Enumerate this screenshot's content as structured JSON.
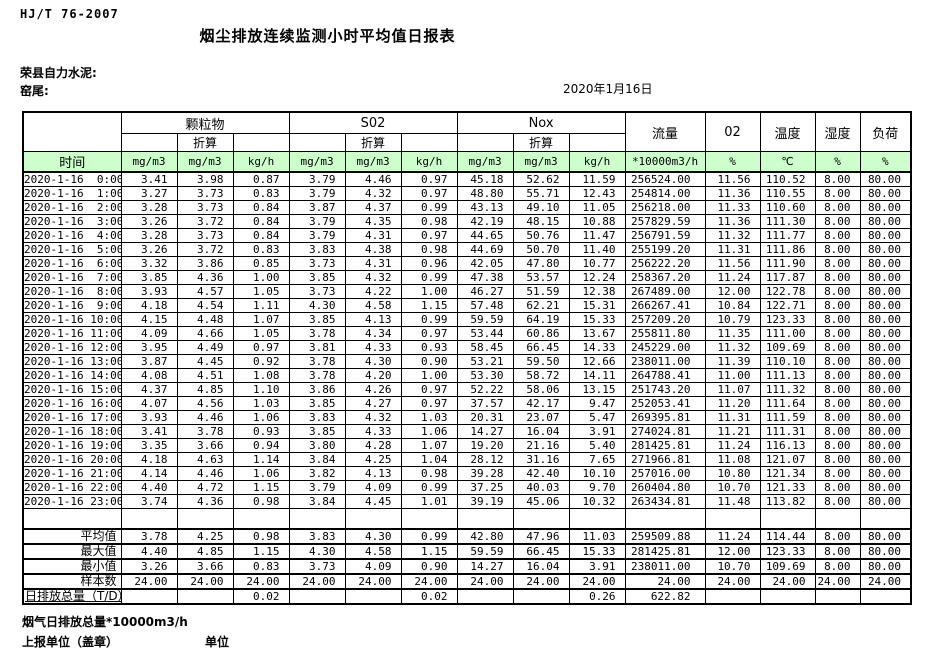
{
  "page": {
    "standard_code": "HJ/T  76-2007",
    "title": "烟尘排放连续监测小时平均值日报表",
    "company": "荣县自力水泥:",
    "station": "窑尾:",
    "date": "2020年1月16日",
    "footer_note": "烟气日排放总量*10000m3/h",
    "footer_report_unit": "上报单位（盖章）",
    "footer_unit_label": "单位"
  },
  "colors": {
    "header_bg": "#ccffcc",
    "border": "#000000",
    "text": "#000000"
  },
  "table": {
    "time_label": "时间",
    "converted_label": "折算",
    "groups": {
      "pm": "颗粒物",
      "so2": "S02",
      "nox": "Nox",
      "flow": "流量",
      "o2": "02",
      "temperature": "温度",
      "humidity": "湿度",
      "load": "负荷"
    },
    "units": [
      "mg/m3",
      "mg/m3",
      "kg/h",
      "mg/m3",
      "mg/m3",
      "kg/h",
      "mg/m3",
      "mg/m3",
      "kg/h",
      "*10000m3/h",
      "%",
      "℃",
      "%",
      "%"
    ],
    "rows": [
      {
        "time": "2020-1-16  0:00",
        "values": [
          "3.41",
          "3.98",
          "0.87",
          "3.79",
          "4.46",
          "0.97",
          "45.18",
          "52.62",
          "11.59",
          "256524.00",
          "11.56",
          "110.52",
          "8.00",
          "80.00"
        ]
      },
      {
        "time": "2020-1-16  1:00",
        "values": [
          "3.27",
          "3.73",
          "0.83",
          "3.79",
          "4.32",
          "0.97",
          "48.80",
          "55.71",
          "12.43",
          "254814.00",
          "11.36",
          "110.55",
          "8.00",
          "80.00"
        ]
      },
      {
        "time": "2020-1-16  2:00",
        "values": [
          "3.28",
          "3.73",
          "0.84",
          "3.87",
          "4.37",
          "0.99",
          "43.13",
          "49.10",
          "11.05",
          "256218.00",
          "11.33",
          "110.60",
          "8.00",
          "80.00"
        ]
      },
      {
        "time": "2020-1-16  3:00",
        "values": [
          "3.26",
          "3.72",
          "0.84",
          "3.79",
          "4.35",
          "0.98",
          "42.19",
          "48.15",
          "10.88",
          "257829.59",
          "11.36",
          "111.30",
          "8.00",
          "80.00"
        ]
      },
      {
        "time": "2020-1-16  4:00",
        "values": [
          "3.28",
          "3.73",
          "0.84",
          "3.79",
          "4.31",
          "0.97",
          "44.65",
          "50.76",
          "11.47",
          "256791.59",
          "11.32",
          "111.77",
          "8.00",
          "80.00"
        ]
      },
      {
        "time": "2020-1-16  5:00",
        "values": [
          "3.26",
          "3.72",
          "0.83",
          "3.83",
          "4.38",
          "0.98",
          "44.69",
          "50.70",
          "11.40",
          "255199.20",
          "11.31",
          "111.86",
          "8.00",
          "80.00"
        ]
      },
      {
        "time": "2020-1-16  6:00",
        "values": [
          "3.32",
          "3.86",
          "0.85",
          "3.73",
          "4.31",
          "0.96",
          "42.05",
          "47.80",
          "10.77",
          "256222.20",
          "11.56",
          "111.90",
          "8.00",
          "80.00"
        ]
      },
      {
        "time": "2020-1-16  7:00",
        "values": [
          "3.85",
          "4.36",
          "1.00",
          "3.85",
          "4.32",
          "0.99",
          "47.38",
          "53.57",
          "12.24",
          "258367.20",
          "11.24",
          "117.87",
          "8.00",
          "80.00"
        ]
      },
      {
        "time": "2020-1-16  8:00",
        "values": [
          "3.93",
          "4.57",
          "1.05",
          "3.73",
          "4.22",
          "1.00",
          "46.27",
          "51.59",
          "12.38",
          "267489.00",
          "12.00",
          "122.78",
          "8.00",
          "80.00"
        ]
      },
      {
        "time": "2020-1-16  9:00",
        "values": [
          "4.18",
          "4.54",
          "1.11",
          "4.30",
          "4.58",
          "1.15",
          "57.48",
          "62.21",
          "15.31",
          "266267.41",
          "10.84",
          "122.71",
          "8.00",
          "80.00"
        ]
      },
      {
        "time": "2020-1-16 10:00",
        "values": [
          "4.15",
          "4.48",
          "1.07",
          "3.85",
          "4.13",
          "0.99",
          "59.59",
          "64.19",
          "15.33",
          "257209.20",
          "10.79",
          "123.33",
          "8.00",
          "80.00"
        ]
      },
      {
        "time": "2020-1-16 11:00",
        "values": [
          "4.09",
          "4.66",
          "1.05",
          "3.78",
          "4.34",
          "0.97",
          "53.44",
          "60.86",
          "13.67",
          "255811.80",
          "11.35",
          "111.00",
          "8.00",
          "80.00"
        ]
      },
      {
        "time": "2020-1-16 12:00",
        "values": [
          "3.95",
          "4.49",
          "0.97",
          "3.81",
          "4.33",
          "0.93",
          "58.45",
          "66.45",
          "14.33",
          "245229.00",
          "11.32",
          "109.69",
          "8.00",
          "80.00"
        ]
      },
      {
        "time": "2020-1-16 13:00",
        "values": [
          "3.87",
          "4.45",
          "0.92",
          "3.78",
          "4.30",
          "0.90",
          "53.21",
          "59.50",
          "12.66",
          "238011.00",
          "11.39",
          "110.10",
          "8.00",
          "80.00"
        ]
      },
      {
        "time": "2020-1-16 14:00",
        "values": [
          "4.08",
          "4.51",
          "1.08",
          "3.78",
          "4.20",
          "1.00",
          "53.30",
          "58.72",
          "14.11",
          "264788.41",
          "11.00",
          "111.13",
          "8.00",
          "80.00"
        ]
      },
      {
        "time": "2020-1-16 15:00",
        "values": [
          "4.37",
          "4.85",
          "1.10",
          "3.86",
          "4.26",
          "0.97",
          "52.22",
          "58.06",
          "13.15",
          "251743.20",
          "11.07",
          "111.32",
          "8.00",
          "80.00"
        ]
      },
      {
        "time": "2020-1-16 16:00",
        "values": [
          "4.07",
          "4.56",
          "1.03",
          "3.85",
          "4.27",
          "0.97",
          "37.57",
          "42.17",
          "9.47",
          "252053.41",
          "11.20",
          "111.64",
          "8.00",
          "80.00"
        ]
      },
      {
        "time": "2020-1-16 17:00",
        "values": [
          "3.93",
          "4.46",
          "1.06",
          "3.83",
          "4.32",
          "1.03",
          "20.31",
          "23.07",
          "5.47",
          "269395.81",
          "11.31",
          "111.59",
          "8.00",
          "80.00"
        ]
      },
      {
        "time": "2020-1-16 18:00",
        "values": [
          "3.41",
          "3.78",
          "0.93",
          "3.85",
          "4.33",
          "1.06",
          "14.27",
          "16.04",
          "3.91",
          "274024.81",
          "11.21",
          "111.31",
          "8.00",
          "80.00"
        ]
      },
      {
        "time": "2020-1-16 19:00",
        "values": [
          "3.35",
          "3.66",
          "0.94",
          "3.80",
          "4.28",
          "1.07",
          "19.20",
          "21.16",
          "5.40",
          "281425.81",
          "11.24",
          "116.13",
          "8.00",
          "80.00"
        ]
      },
      {
        "time": "2020-1-16 20:00",
        "values": [
          "4.18",
          "4.63",
          "1.14",
          "3.84",
          "4.25",
          "1.04",
          "28.12",
          "31.16",
          "7.65",
          "271966.81",
          "11.08",
          "121.07",
          "8.00",
          "80.00"
        ]
      },
      {
        "time": "2020-1-16 21:00",
        "values": [
          "4.14",
          "4.46",
          "1.06",
          "3.82",
          "4.13",
          "0.98",
          "39.28",
          "42.40",
          "10.10",
          "257016.00",
          "10.80",
          "121.34",
          "8.00",
          "80.00"
        ]
      },
      {
        "time": "2020-1-16 22:00",
        "values": [
          "4.40",
          "4.72",
          "1.15",
          "3.79",
          "4.09",
          "0.99",
          "37.25",
          "40.03",
          "9.70",
          "260404.80",
          "10.70",
          "121.33",
          "8.00",
          "80.00"
        ]
      },
      {
        "time": "2020-1-16 23:00",
        "values": [
          "3.74",
          "4.36",
          "0.98",
          "3.84",
          "4.45",
          "1.01",
          "39.19",
          "45.06",
          "10.32",
          "263434.81",
          "11.48",
          "113.82",
          "8.00",
          "80.00"
        ]
      }
    ],
    "summary_rows": [
      {
        "label": "平均值",
        "values": [
          "3.78",
          "4.25",
          "0.98",
          "3.83",
          "4.30",
          "0.99",
          "42.80",
          "47.96",
          "11.03",
          "259509.88",
          "11.24",
          "114.44",
          "8.00",
          "80.00"
        ]
      },
      {
        "label": "最大值",
        "values": [
          "4.40",
          "4.85",
          "1.15",
          "4.30",
          "4.58",
          "1.15",
          "59.59",
          "66.45",
          "15.33",
          "281425.81",
          "12.00",
          "123.33",
          "8.00",
          "80.00"
        ]
      },
      {
        "label": "最小值",
        "values": [
          "3.26",
          "3.66",
          "0.83",
          "3.73",
          "4.09",
          "0.90",
          "14.27",
          "16.04",
          "3.91",
          "238011.00",
          "10.70",
          "109.69",
          "8.00",
          "80.00"
        ]
      },
      {
        "label": "样本数",
        "values": [
          "24.00",
          "24.00",
          "24.00",
          "24.00",
          "24.00",
          "24.00",
          "24.00",
          "24.00",
          "24.00",
          "24.00",
          "24.00",
          "24.00",
          "24.00",
          "24.00"
        ]
      },
      {
        "label": "日排放总量（T/D）",
        "values": [
          "",
          "",
          "0.02",
          "",
          "",
          "0.02",
          "",
          "",
          "0.26",
          "622.82",
          "",
          "",
          "",
          ""
        ]
      }
    ]
  }
}
